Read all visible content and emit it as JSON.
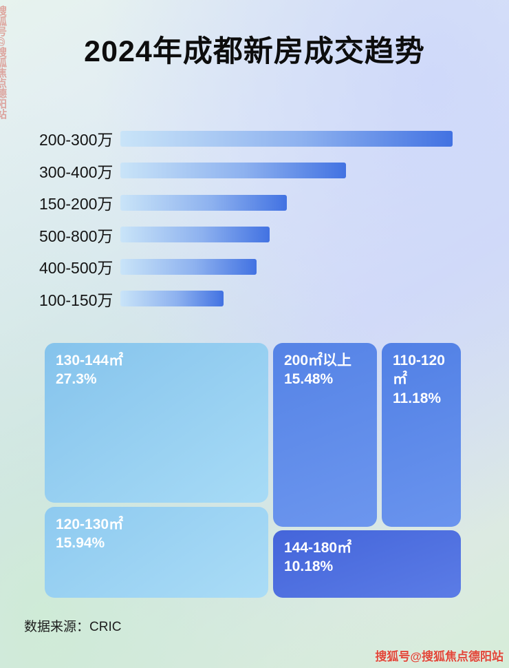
{
  "page": {
    "title": "2024年成都新房成交趋势",
    "source": "数据来源：CRIC",
    "watermark": "搜狐号@搜狐焦点德阳站"
  },
  "chart_data": [
    {
      "type": "bar",
      "orientation": "horizontal",
      "title": "2024年成都新房成交趋势",
      "categories": [
        "200-300万",
        "300-400万",
        "150-200万",
        "500-800万",
        "400-500万",
        "100-150万"
      ],
      "values_percent_of_max": [
        100,
        68,
        50,
        45,
        41,
        31
      ],
      "value_labels_shown": false,
      "bar_gradient": [
        "#c9e4f8",
        "#4272e2"
      ],
      "grid": false,
      "legend": false
    },
    {
      "type": "treemap",
      "items": [
        {
          "label": "130-144㎡",
          "value": "27.3%"
        },
        {
          "label": "200㎡以上",
          "value": "15.48%"
        },
        {
          "label": "110-120㎡",
          "value": "11.18%"
        },
        {
          "label": "120-130㎡",
          "value": "15.94%"
        },
        {
          "label": "144-180㎡",
          "value": "10.18%"
        }
      ],
      "colors": {
        "light_blue": "#8fc9ef",
        "medium_blue": "#5583e6",
        "dark_blue": "#4465da"
      }
    }
  ]
}
